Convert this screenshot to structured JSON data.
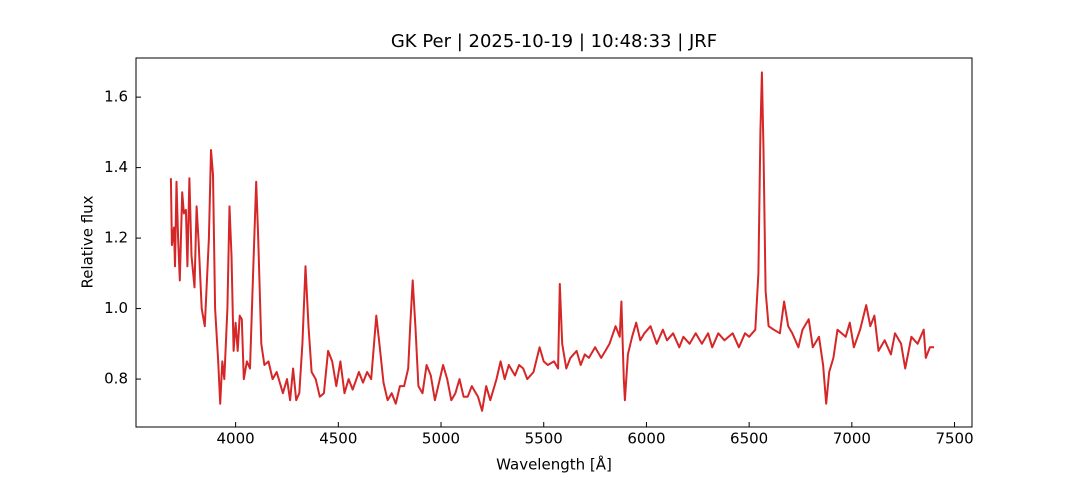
{
  "chart_data": {
    "type": "line",
    "title": "GK Per | 2025-10-19 | 10:48:33 | JRF",
    "xlabel": "Wavelength [Å]",
    "ylabel": "Relative flux",
    "xlim": [
      3515,
      7585
    ],
    "ylim": [
      0.664,
      1.711
    ],
    "xticks": [
      4000,
      4500,
      5000,
      5500,
      6000,
      6500,
      7000,
      7500
    ],
    "yticks": [
      0.8,
      {
        "value": 1,
        "label": "1.0"
      },
      1.2,
      1.4,
      1.6
    ],
    "grid": false,
    "series": [
      {
        "name": "GK Per",
        "color": "#d62728",
        "x": [
          3685,
          3690,
          3700,
          3705,
          3712,
          3720,
          3728,
          3740,
          3748,
          3758,
          3765,
          3775,
          3785,
          3800,
          3810,
          3820,
          3835,
          3850,
          3870,
          3880,
          3890,
          3900,
          3915,
          3925,
          3935,
          3945,
          3960,
          3970,
          3980,
          3990,
          4000,
          4010,
          4020,
          4030,
          4040,
          4055,
          4070,
          4085,
          4100,
          4110,
          4125,
          4140,
          4160,
          4180,
          4200,
          4230,
          4250,
          4265,
          4280,
          4295,
          4310,
          4325,
          4340,
          4355,
          4370,
          4390,
          4410,
          4430,
          4450,
          4470,
          4490,
          4510,
          4530,
          4550,
          4570,
          4600,
          4620,
          4640,
          4660,
          4685,
          4700,
          4720,
          4740,
          4760,
          4780,
          4800,
          4820,
          4840,
          4850,
          4862,
          4875,
          4890,
          4910,
          4930,
          4950,
          4970,
          4990,
          5010,
          5030,
          5050,
          5070,
          5090,
          5110,
          5130,
          5150,
          5180,
          5200,
          5220,
          5240,
          5270,
          5290,
          5310,
          5330,
          5360,
          5380,
          5400,
          5420,
          5450,
          5480,
          5500,
          5520,
          5550,
          5570,
          5578,
          5590,
          5610,
          5630,
          5660,
          5680,
          5700,
          5720,
          5750,
          5780,
          5800,
          5820,
          5850,
          5870,
          5878,
          5890,
          5895,
          5910,
          5930,
          5950,
          5970,
          5990,
          6020,
          6050,
          6080,
          6100,
          6130,
          6160,
          6180,
          6210,
          6240,
          6270,
          6300,
          6320,
          6350,
          6380,
          6420,
          6450,
          6480,
          6500,
          6530,
          6545,
          6555,
          6562,
          6570,
          6580,
          6595,
          6620,
          6650,
          6670,
          6690,
          6710,
          6740,
          6760,
          6790,
          6810,
          6840,
          6860,
          6875,
          6890,
          6910,
          6930,
          6950,
          6970,
          6990,
          7010,
          7040,
          7070,
          7090,
          7110,
          7130,
          7160,
          7190,
          7210,
          7240,
          7260,
          7290,
          7320,
          7350,
          7360,
          7380,
          7400
        ],
        "values": [
          1.37,
          1.18,
          1.23,
          1.12,
          1.36,
          1.2,
          1.08,
          1.33,
          1.27,
          1.28,
          1.12,
          1.37,
          1.15,
          1.06,
          1.29,
          1.19,
          1.0,
          0.95,
          1.2,
          1.45,
          1.38,
          1.0,
          0.85,
          0.73,
          0.85,
          0.8,
          1.0,
          1.29,
          1.15,
          0.88,
          0.96,
          0.88,
          0.98,
          0.97,
          0.8,
          0.85,
          0.83,
          1.1,
          1.36,
          1.2,
          0.9,
          0.84,
          0.85,
          0.8,
          0.82,
          0.76,
          0.8,
          0.74,
          0.83,
          0.74,
          0.76,
          0.9,
          1.12,
          0.95,
          0.82,
          0.8,
          0.75,
          0.76,
          0.88,
          0.85,
          0.78,
          0.85,
          0.76,
          0.8,
          0.77,
          0.82,
          0.79,
          0.82,
          0.8,
          0.98,
          0.9,
          0.79,
          0.74,
          0.76,
          0.73,
          0.78,
          0.78,
          0.83,
          0.95,
          1.08,
          0.95,
          0.78,
          0.76,
          0.84,
          0.81,
          0.74,
          0.79,
          0.84,
          0.8,
          0.74,
          0.76,
          0.8,
          0.75,
          0.75,
          0.78,
          0.75,
          0.71,
          0.78,
          0.74,
          0.8,
          0.85,
          0.8,
          0.84,
          0.81,
          0.84,
          0.83,
          0.8,
          0.82,
          0.89,
          0.85,
          0.84,
          0.85,
          0.83,
          1.07,
          0.9,
          0.83,
          0.86,
          0.88,
          0.84,
          0.87,
          0.86,
          0.89,
          0.86,
          0.88,
          0.9,
          0.95,
          0.92,
          1.02,
          0.8,
          0.74,
          0.87,
          0.92,
          0.96,
          0.91,
          0.93,
          0.95,
          0.9,
          0.94,
          0.91,
          0.93,
          0.89,
          0.92,
          0.9,
          0.93,
          0.9,
          0.93,
          0.89,
          0.93,
          0.91,
          0.93,
          0.89,
          0.93,
          0.92,
          0.94,
          1.1,
          1.5,
          1.67,
          1.45,
          1.05,
          0.95,
          0.94,
          0.93,
          1.02,
          0.95,
          0.93,
          0.89,
          0.94,
          0.97,
          0.89,
          0.92,
          0.84,
          0.73,
          0.82,
          0.86,
          0.94,
          0.93,
          0.92,
          0.96,
          0.89,
          0.94,
          1.01,
          0.95,
          0.98,
          0.88,
          0.91,
          0.87,
          0.93,
          0.9,
          0.83,
          0.92,
          0.9,
          0.94,
          0.86,
          0.89,
          0.89
        ]
      }
    ]
  }
}
